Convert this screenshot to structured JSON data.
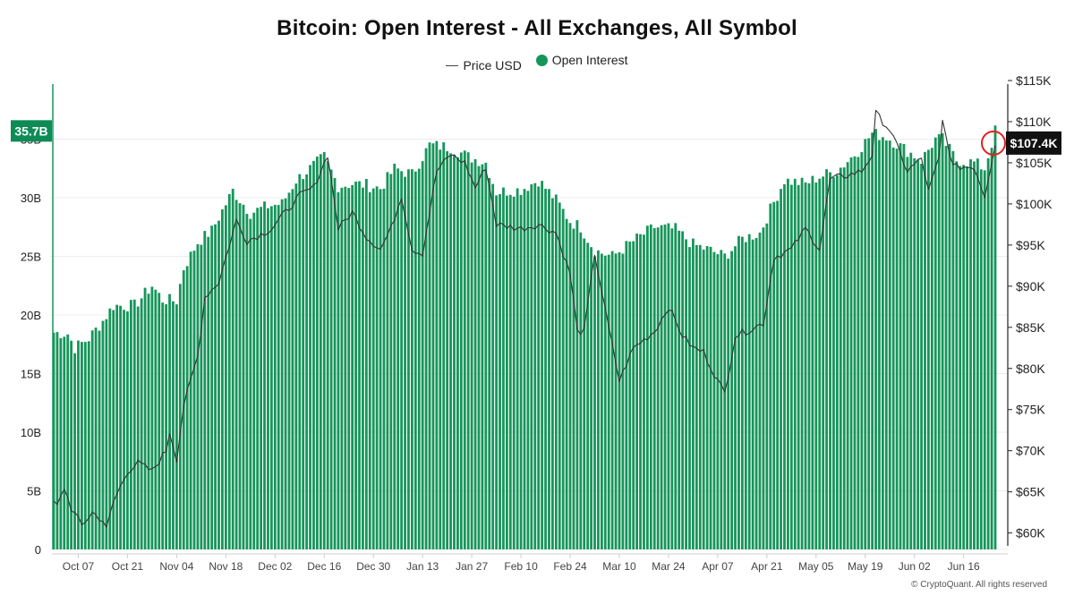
{
  "colors": {
    "oi": "#16955a",
    "price": "#333333",
    "current_badge": "#0e8b57",
    "price_badge": "#111111",
    "marker": "#e02020"
  },
  "chart_data": {
    "type": "bar",
    "title": "Bitcoin: Open Interest - All Exchanges, All Symbol",
    "legend": [
      {
        "name": "Price USD",
        "style": "line"
      },
      {
        "name": "Open Interest",
        "style": "dot"
      }
    ],
    "legend_position": "top-center",
    "grid": true,
    "x_ticks": [
      "Oct 07",
      "Oct 21",
      "Nov 04",
      "Nov 18",
      "Dec 02",
      "Dec 16",
      "Dec 30",
      "Jan 13",
      "Jan 27",
      "Feb 10",
      "Feb 24",
      "Mar 10",
      "Mar 24",
      "Apr 07",
      "Apr 21",
      "May 05",
      "May 19",
      "Jun 02",
      "Jun 16"
    ],
    "y_left": {
      "ticks": [
        "0",
        "5B",
        "10B",
        "15B",
        "20B",
        "25B",
        "30B",
        "35B"
      ],
      "range_billion": [
        0,
        40
      ]
    },
    "y_right": {
      "ticks": [
        "$60K",
        "$65K",
        "$70K",
        "$75K",
        "$80K",
        "$85K",
        "$90K",
        "$95K",
        "$100K",
        "$105K",
        "$110K",
        "$115K"
      ],
      "range_k": [
        58,
        115
      ]
    },
    "current_oi_label": "35.7B",
    "current_price_label": "$107.4K",
    "series": [
      {
        "name": "Open Interest",
        "unit": "billion USD",
        "keyframes": [
          [
            "Sep 30",
            18.5
          ],
          [
            "Oct 04",
            18.4
          ],
          [
            "Oct 06",
            17.2
          ],
          [
            "Oct 10",
            18.0
          ],
          [
            "Oct 14",
            19.5
          ],
          [
            "Oct 17",
            20.8
          ],
          [
            "Oct 23",
            20.8
          ],
          [
            "Oct 28",
            22.5
          ],
          [
            "Oct 31",
            21.3
          ],
          [
            "Nov 04",
            21.2
          ],
          [
            "Nov 06",
            24.0
          ],
          [
            "Nov 10",
            26.2
          ],
          [
            "Nov 14",
            27.2
          ],
          [
            "Nov 20",
            30.6
          ],
          [
            "Nov 25",
            28.7
          ],
          [
            "Nov 30",
            29.3
          ],
          [
            "Dec 04",
            29.5
          ],
          [
            "Dec 08",
            31.5
          ],
          [
            "Dec 12",
            32.5
          ],
          [
            "Dec 16",
            33.5
          ],
          [
            "Dec 20",
            31.0
          ],
          [
            "Dec 24",
            31.2
          ],
          [
            "Dec 28",
            31.1
          ],
          [
            "Jan 01",
            30.8
          ],
          [
            "Jan 05",
            32.5
          ],
          [
            "Jan 10",
            32.0
          ],
          [
            "Jan 15",
            34.5
          ],
          [
            "Jan 21",
            34.3
          ],
          [
            "Jan 26",
            33.5
          ],
          [
            "Jan 31",
            33.0
          ],
          [
            "Feb 03",
            30.5
          ],
          [
            "Feb 10",
            30.7
          ],
          [
            "Feb 15",
            31.5
          ],
          [
            "Feb 20",
            29.8
          ],
          [
            "Feb 24",
            28.0
          ],
          [
            "Feb 27",
            27.5
          ],
          [
            "Mar 03",
            25.5
          ],
          [
            "Mar 08",
            25.0
          ],
          [
            "Mar 14",
            26.3
          ],
          [
            "Mar 20",
            27.5
          ],
          [
            "Mar 26",
            27.3
          ],
          [
            "Mar 31",
            26.0
          ],
          [
            "Apr 05",
            25.5
          ],
          [
            "Apr 09",
            25.0
          ],
          [
            "Apr 14",
            26.5
          ],
          [
            "Apr 19",
            27.0
          ],
          [
            "Apr 22",
            29.0
          ],
          [
            "Apr 26",
            31.5
          ],
          [
            "May 02",
            31.2
          ],
          [
            "May 06",
            31.8
          ],
          [
            "May 11",
            32.3
          ],
          [
            "May 17",
            34.0
          ],
          [
            "May 21",
            35.5
          ],
          [
            "May 25",
            35.2
          ],
          [
            "May 31",
            34.0
          ],
          [
            "Jun 04",
            33.2
          ],
          [
            "Jun 08",
            35.0
          ],
          [
            "Jun 10",
            35.0
          ],
          [
            "Jun 14",
            33.2
          ],
          [
            "Jun 19",
            33.0
          ],
          [
            "Jun 22",
            32.5
          ],
          [
            "Jun 25",
            35.7
          ]
        ]
      },
      {
        "name": "Price USD",
        "unit": "thousand USD",
        "keyframes": [
          [
            "Sep 30",
            63.8
          ],
          [
            "Oct 01",
            63.2
          ],
          [
            "Oct 03",
            65.5
          ],
          [
            "Oct 05",
            63.0
          ],
          [
            "Oct 08",
            60.9
          ],
          [
            "Oct 11",
            62.5
          ],
          [
            "Oct 14",
            61.5
          ],
          [
            "Oct 15",
            60.4
          ],
          [
            "Oct 17",
            63.8
          ],
          [
            "Oct 21",
            67.5
          ],
          [
            "Oct 24",
            68.5
          ],
          [
            "Oct 28",
            67.5
          ],
          [
            "Nov 01",
            70.0
          ],
          [
            "Nov 02",
            72.3
          ],
          [
            "Nov 04",
            69.0
          ],
          [
            "Nov 06",
            75.5
          ],
          [
            "Nov 10",
            81.5
          ],
          [
            "Nov 12",
            88.7
          ],
          [
            "Nov 16",
            90.5
          ],
          [
            "Nov 21",
            98.0
          ],
          [
            "Nov 24",
            95.5
          ],
          [
            "Nov 28",
            96.3
          ],
          [
            "Dec 01",
            97.0
          ],
          [
            "Dec 04",
            98.5
          ],
          [
            "Dec 09",
            101.0
          ],
          [
            "Dec 13",
            102.0
          ],
          [
            "Dec 17",
            106.0
          ],
          [
            "Dec 20",
            97.0
          ],
          [
            "Dec 24",
            99.0
          ],
          [
            "Dec 28",
            96.0
          ],
          [
            "Jan 01",
            94.5
          ],
          [
            "Jan 04",
            97.0
          ],
          [
            "Jan 07",
            101.0
          ],
          [
            "Jan 10",
            94.5
          ],
          [
            "Jan 13",
            94.0
          ],
          [
            "Jan 17",
            104.0
          ],
          [
            "Jan 21",
            106.0
          ],
          [
            "Jan 25",
            105.0
          ],
          [
            "Jan 28",
            102.0
          ],
          [
            "Jan 31",
            104.5
          ],
          [
            "Feb 03",
            97.5
          ],
          [
            "Feb 10",
            97.0
          ],
          [
            "Feb 15",
            97.5
          ],
          [
            "Feb 20",
            96.5
          ],
          [
            "Feb 24",
            91.5
          ],
          [
            "Feb 26",
            84.5
          ],
          [
            "Feb 28",
            84.5
          ],
          [
            "Mar 03",
            94.0
          ],
          [
            "Mar 06",
            87.0
          ],
          [
            "Mar 10",
            78.5
          ],
          [
            "Mar 14",
            82.5
          ],
          [
            "Mar 20",
            84.5
          ],
          [
            "Mar 24",
            87.5
          ],
          [
            "Mar 28",
            84.0
          ],
          [
            "Mar 31",
            82.5
          ],
          [
            "Apr 03",
            82.0
          ],
          [
            "Apr 07",
            78.5
          ],
          [
            "Apr 09",
            77.0
          ],
          [
            "Apr 12",
            84.0
          ],
          [
            "Apr 15",
            84.5
          ],
          [
            "Apr 20",
            85.5
          ],
          [
            "Apr 23",
            93.5
          ],
          [
            "Apr 28",
            94.5
          ],
          [
            "May 02",
            97.0
          ],
          [
            "May 06",
            94.5
          ],
          [
            "May 09",
            103.0
          ],
          [
            "May 14",
            103.5
          ],
          [
            "May 18",
            104.0
          ],
          [
            "May 21",
            106.0
          ],
          [
            "May 22",
            111.0
          ],
          [
            "May 26",
            109.0
          ],
          [
            "May 31",
            104.0
          ],
          [
            "Jun 04",
            105.5
          ],
          [
            "Jun 06",
            101.5
          ],
          [
            "Jun 09",
            105.5
          ],
          [
            "Jun 10",
            110.0
          ],
          [
            "Jun 13",
            104.5
          ],
          [
            "Jun 17",
            104.5
          ],
          [
            "Jun 19",
            104.5
          ],
          [
            "Jun 22",
            101.0
          ],
          [
            "Jun 25",
            107.4
          ]
        ]
      }
    ]
  },
  "footer": {
    "watermark": "© CryptoQuant. All rights reserved"
  }
}
